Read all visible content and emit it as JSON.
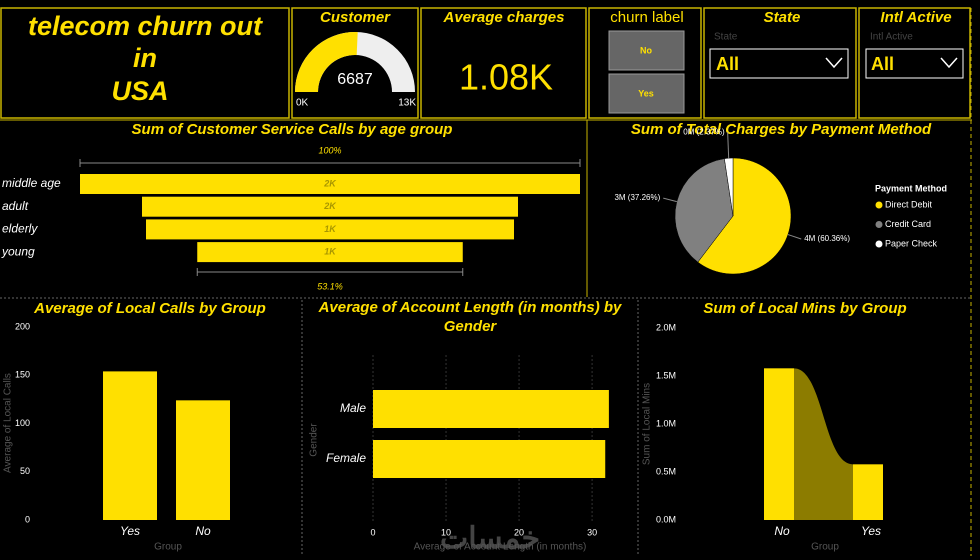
{
  "header": {
    "title_lines": [
      "telecom churn out",
      "in",
      "USA"
    ]
  },
  "average_charges": {
    "title": "Average charges",
    "value": "1.08K"
  },
  "churn_slicer": {
    "title": "churn label",
    "options": [
      "No",
      "Yes"
    ]
  },
  "state_slicer": {
    "title": "State",
    "label": "State",
    "selected": "All"
  },
  "intl_slicer": {
    "title": "Intl Active",
    "label": "Intl Active",
    "selected": "All"
  },
  "watermark": "خمسات",
  "chart_data": [
    {
      "type": "gauge",
      "title": "Customer",
      "value": 6687,
      "min": {
        "value": 0,
        "label": "0K"
      },
      "max": {
        "value": 13000,
        "label": "13K"
      },
      "color": "#ffe000",
      "track_color": "#eeeeee"
    },
    {
      "type": "funnel",
      "title": "Sum of Customer Service Calls by age group",
      "categories": [
        "middle age",
        "adult",
        "elderly",
        "young"
      ],
      "values": [
        2000,
        1504,
        1472,
        1062
      ],
      "value_labels": [
        "2K",
        "2K",
        "1K",
        "1K"
      ],
      "top_label": "100%",
      "bottom_label": "53.1%",
      "color": "#ffe000"
    },
    {
      "type": "pie",
      "title": "Sum of Total Charges by Payment Method",
      "legend_title": "Payment Method",
      "series": [
        {
          "name": "Direct Debit",
          "color": "#ffe000",
          "values": [
            60.36
          ],
          "value_labels": [
            "4M (60.36%)"
          ]
        },
        {
          "name": "Credit Card",
          "color": "#808080",
          "values": [
            37.26
          ],
          "value_labels": [
            "3M (37.26%)"
          ]
        },
        {
          "name": "Paper Check",
          "color": "#ffffff",
          "values": [
            2.37
          ],
          "value_labels": [
            "0M (2.37%)"
          ]
        }
      ]
    },
    {
      "type": "bar",
      "title": "Average of Local Calls by Group",
      "x_label": "Group",
      "y_label": "Average of Local Calls",
      "categories": [
        "Yes",
        "No"
      ],
      "values": [
        154,
        124
      ],
      "color": "#ffe000",
      "ylim": [
        0,
        200
      ],
      "yticks": [
        0,
        50,
        100,
        150,
        200
      ]
    },
    {
      "type": "hbar",
      "title": "Average of Account Length (in months) by Gender",
      "x_label": "Average of Account Length (in months)",
      "y_label": "Gender",
      "categories": [
        "Male",
        "Female"
      ],
      "values": [
        32.3,
        31.8
      ],
      "color": "#ffe000",
      "xlim": [
        0,
        33
      ],
      "xticks": [
        0,
        10,
        20,
        30
      ],
      "grid": true
    },
    {
      "type": "ribbon",
      "title": "Sum of Local Mins by Group",
      "x_label": "Group",
      "y_label": "Sum of Local Mins",
      "categories": [
        "No",
        "Yes"
      ],
      "values": [
        1580000,
        580000
      ],
      "color": "#ffe000",
      "ribbon_color": "#8c7c00",
      "ylim": [
        0,
        2000000
      ],
      "yticks": [
        {
          "value": 0,
          "label": "0.0M"
        },
        {
          "value": 500000,
          "label": "0.5M"
        },
        {
          "value": 1000000,
          "label": "1.0M"
        },
        {
          "value": 1500000,
          "label": "1.5M"
        },
        {
          "value": 2000000,
          "label": "2.0M"
        }
      ]
    }
  ]
}
